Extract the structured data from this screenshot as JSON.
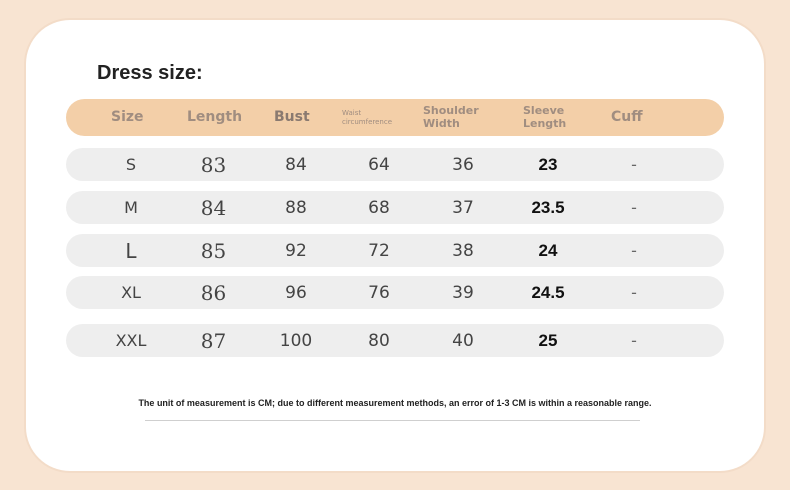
{
  "title": "Dress size:",
  "headers": {
    "size": "Size",
    "length": "Length",
    "bust": "Bust",
    "waist": "Waist\ncircumference",
    "shoulder": "Shoulder\nWidth",
    "sleeve": "Sleeve\nLength",
    "cuff": "Cuff"
  },
  "rows": [
    {
      "size": "S",
      "length": "83",
      "bust": "84",
      "waist": "64",
      "shoulder": "36",
      "sleeve": "23",
      "cuff": "-"
    },
    {
      "size": "M",
      "length": "84",
      "bust": "88",
      "waist": "68",
      "shoulder": "37",
      "sleeve": "23.5",
      "cuff": "-"
    },
    {
      "size": "L",
      "length": "85",
      "bust": "92",
      "waist": "72",
      "shoulder": "38",
      "sleeve": "24",
      "cuff": "-"
    },
    {
      "size": "XL",
      "length": "86",
      "bust": "96",
      "waist": "76",
      "shoulder": "39",
      "sleeve": "24.5",
      "cuff": "-"
    },
    {
      "size": "XXL",
      "length": "87",
      "bust": "100",
      "waist": "80",
      "shoulder": "40",
      "sleeve": "25",
      "cuff": "-"
    }
  ],
  "note": "The unit of measurement is CM; due to different measurement methods, an error of 1-3 CM is within a reasonable range.",
  "colors": {
    "background": "#f8e4d2",
    "card": "#ffffff",
    "header_bar": "#f3cfa8",
    "header_text": "#a08d80",
    "row_bg": "#eeeeee"
  }
}
